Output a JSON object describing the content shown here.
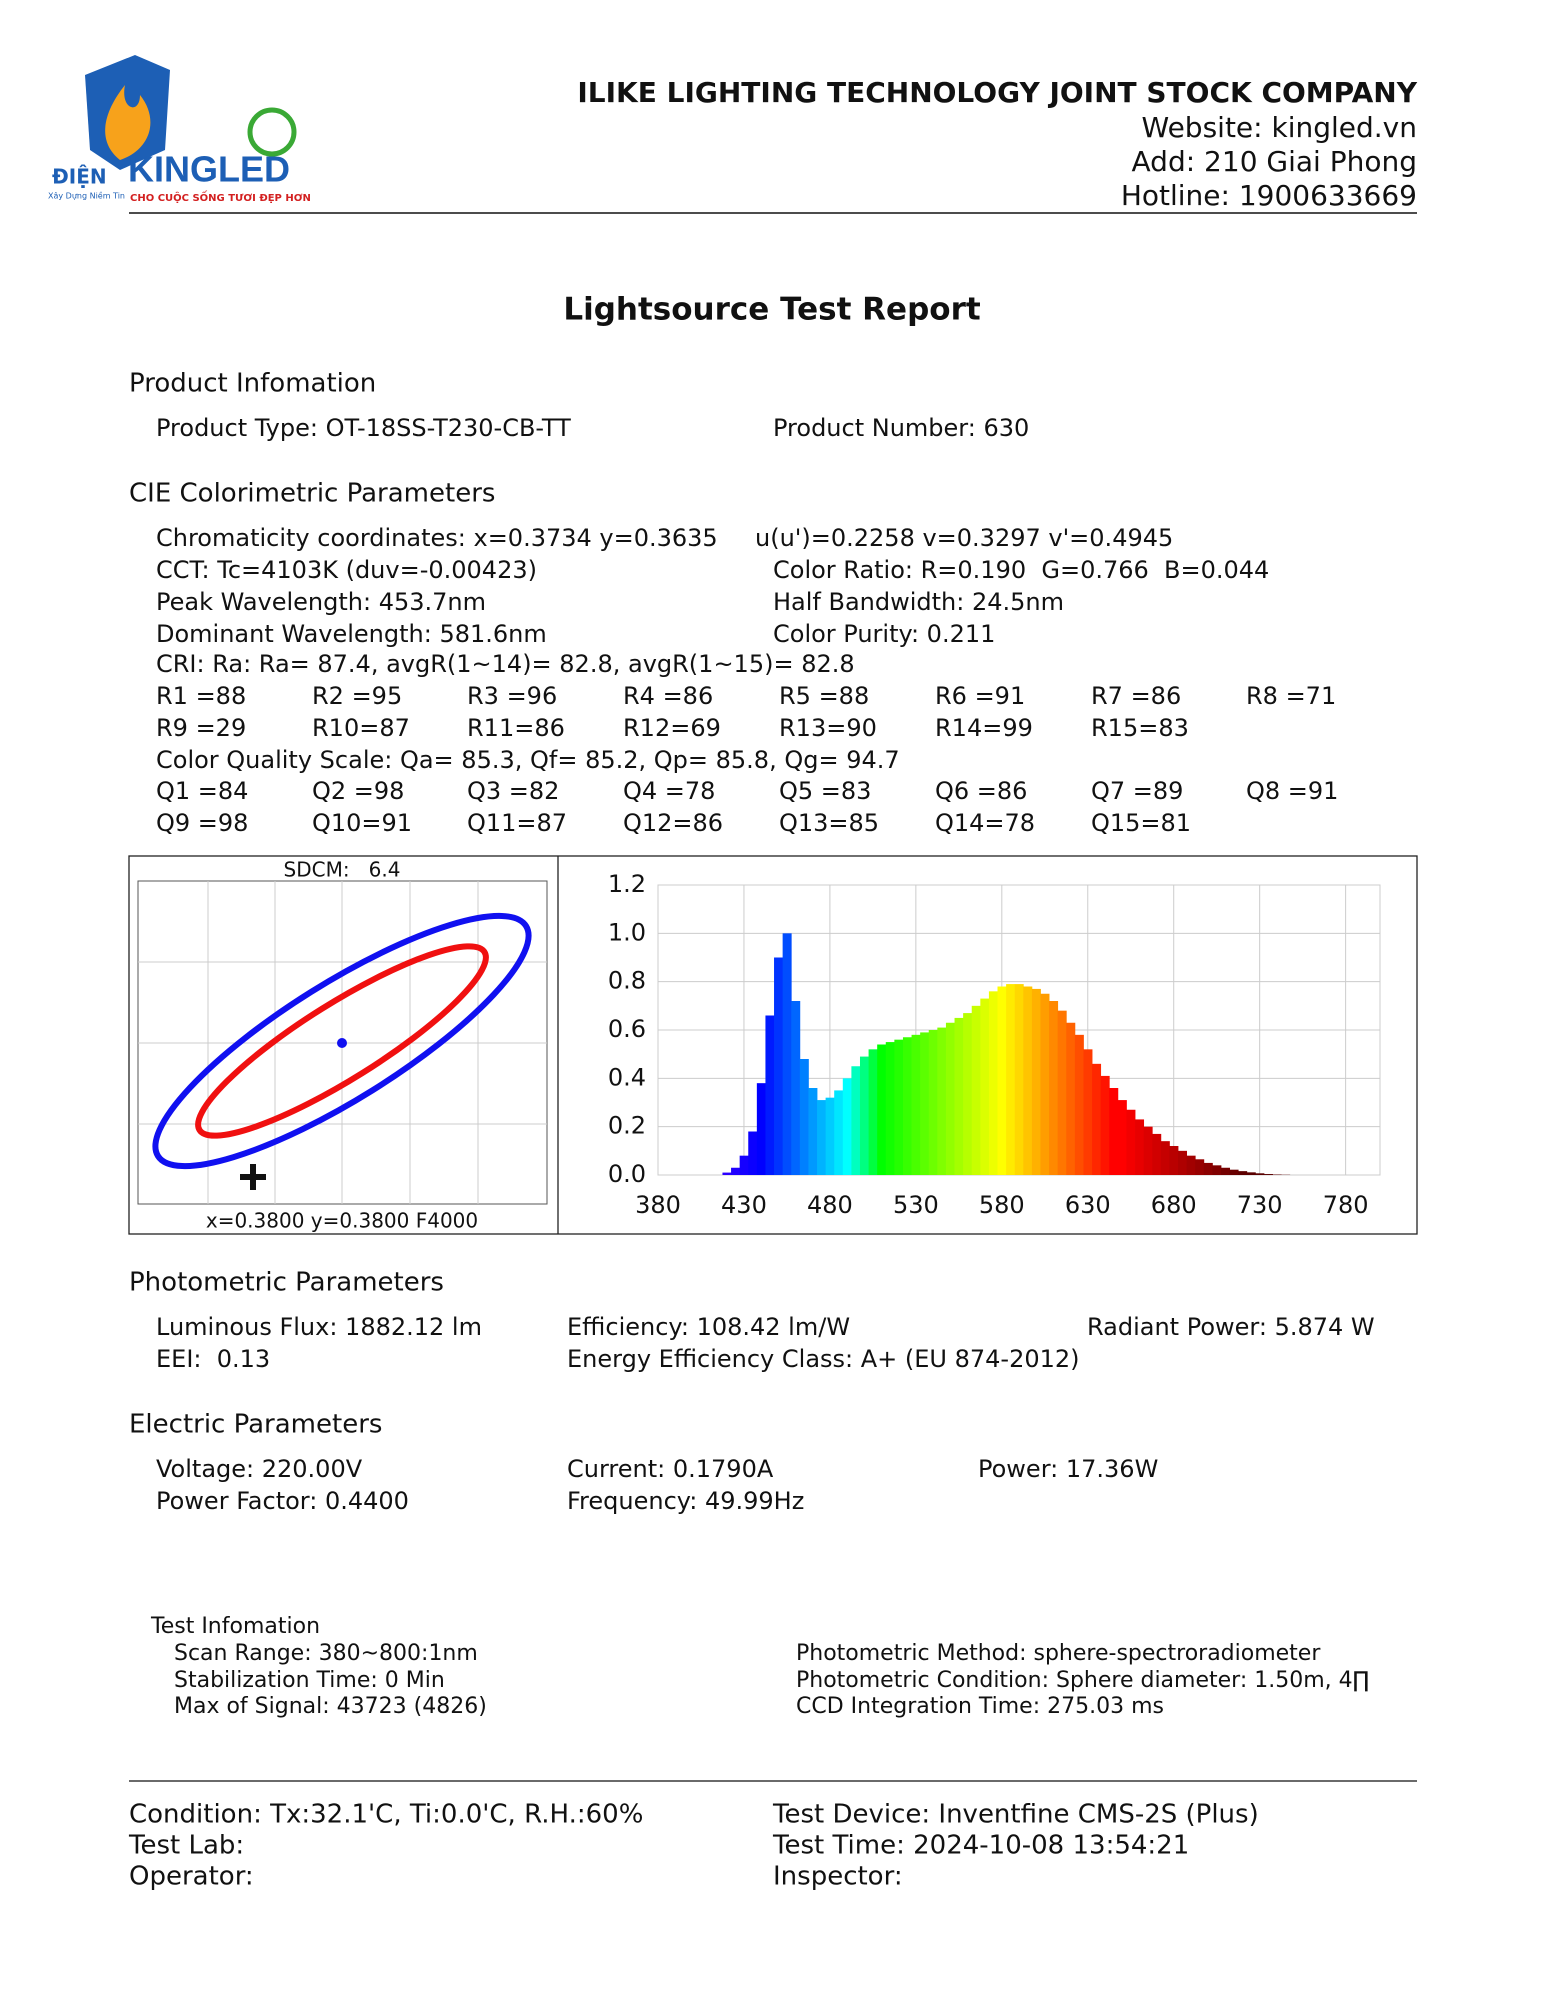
{
  "header": {
    "company": "ILIKE LIGHTING TECHNOLOGY JOINT STOCK COMPANY",
    "website": "Website: kingled.vn",
    "address": "Add: 210 Giai Phong",
    "hotline": "Hotline: 1900633669"
  },
  "logo": {
    "left": "ĐIỆN",
    "brand": "KINGLED",
    "slogan": "CHO CUỘC SỐNG TƯƠI ĐẸP HƠN",
    "tagline": "Xây Dựng Niềm Tin"
  },
  "title": "Lightsource Test Report",
  "product": {
    "heading": "Product Infomation",
    "type": "Product Type: OT-18SS-T230-CB-TT",
    "number": "Product Number: 630"
  },
  "cie": {
    "heading": "CIE Colorimetric Parameters",
    "lines": [
      [
        "Chromaticity coordinates: x=0.3734 y=0.3635",
        "u(u')=0.2258 v=0.3297 v'=0.4945"
      ],
      [
        "CCT: Tc=4103K (duv=-0.00423)",
        "Color Ratio: R=0.190  G=0.766  B=0.044"
      ],
      [
        "Peak Wavelength: 453.7nm",
        "Half Bandwidth: 24.5nm"
      ],
      [
        "Dominant Wavelength: 581.6nm",
        "Color Purity: 0.211"
      ]
    ],
    "cri": "CRI: Ra: Ra= 87.4, avgR(1~14)= 82.8, avgR(1~15)= 82.8",
    "r": [
      "R1 =88",
      "R2 =95",
      "R3 =96",
      "R4 =86",
      "R5 =88",
      "R6 =91",
      "R7 =86",
      "R8 =71",
      "R9 =29",
      "R10=87",
      "R11=86",
      "R12=69",
      "R13=90",
      "R14=99",
      "R15=83"
    ],
    "cqs": "Color Quality Scale: Qa= 85.3, Qf= 85.2, Qp= 85.8, Qg= 94.7",
    "q": [
      "Q1 =84",
      "Q2 =98",
      "Q3 =82",
      "Q4 =78",
      "Q5 =83",
      "Q6 =86",
      "Q7 =89",
      "Q8 =91",
      "Q9 =98",
      "Q10=91",
      "Q11=87",
      "Q12=86",
      "Q13=85",
      "Q14=78",
      "Q15=81"
    ]
  },
  "sdcm": {
    "label": "SDCM:   6.4",
    "target": "x=0.3800 y=0.3800 F4000"
  },
  "chart_data": {
    "type": "bar",
    "grid": true,
    "xlim": [
      380,
      800
    ],
    "xticks": [
      380,
      430,
      480,
      530,
      580,
      630,
      680,
      730,
      780
    ],
    "ylim": [
      0,
      1.2
    ],
    "yticks": [
      {
        "value": 0,
        "label": "0.0"
      },
      0.2,
      0.4,
      0.6,
      0.8,
      {
        "value": 1,
        "label": "1.0"
      },
      1.2
    ],
    "x": [
      380,
      385,
      390,
      395,
      400,
      405,
      410,
      415,
      420,
      425,
      430,
      435,
      440,
      445,
      450,
      455,
      460,
      465,
      470,
      475,
      480,
      485,
      490,
      495,
      500,
      505,
      510,
      515,
      520,
      525,
      530,
      535,
      540,
      545,
      550,
      555,
      560,
      565,
      570,
      575,
      580,
      585,
      590,
      595,
      600,
      605,
      610,
      615,
      620,
      625,
      630,
      635,
      640,
      645,
      650,
      655,
      660,
      665,
      670,
      675,
      680,
      685,
      690,
      695,
      700,
      705,
      710,
      715,
      720,
      725,
      730,
      735,
      740,
      745,
      750,
      755,
      760,
      765,
      770,
      775,
      780
    ],
    "values": [
      0,
      0,
      0,
      0,
      0,
      0,
      0,
      0,
      0.01,
      0.03,
      0.08,
      0.18,
      0.38,
      0.66,
      0.9,
      1.0,
      0.72,
      0.48,
      0.36,
      0.31,
      0.32,
      0.35,
      0.4,
      0.45,
      0.49,
      0.52,
      0.54,
      0.55,
      0.56,
      0.57,
      0.58,
      0.59,
      0.6,
      0.61,
      0.63,
      0.65,
      0.67,
      0.7,
      0.73,
      0.76,
      0.78,
      0.79,
      0.79,
      0.78,
      0.77,
      0.75,
      0.72,
      0.68,
      0.63,
      0.58,
      0.52,
      0.46,
      0.41,
      0.36,
      0.31,
      0.27,
      0.23,
      0.2,
      0.17,
      0.14,
      0.12,
      0.1,
      0.08,
      0.065,
      0.05,
      0.04,
      0.03,
      0.022,
      0.016,
      0.011,
      0.007,
      0.004,
      0.002,
      0.001,
      0,
      0,
      0,
      0,
      0,
      0,
      0
    ]
  },
  "photometric": {
    "heading": "Photometric Parameters",
    "rows": [
      [
        "Luminous Flux: 1882.12 lm",
        "Efficiency: 108.42 lm/W",
        "Radiant Power: 5.874 W"
      ],
      [
        "EEI:  0.13",
        "Energy Efficiency Class: A+ (EU 874-2012)"
      ]
    ]
  },
  "electric": {
    "heading": "Electric Parameters",
    "rows": [
      [
        "Voltage: 220.00V",
        "Current: 0.1790A",
        "Power: 17.36W"
      ],
      [
        "Power Factor: 0.4400",
        "Frequency: 49.99Hz"
      ]
    ]
  },
  "test_info": {
    "heading": "Test Infomation",
    "left": [
      "Scan Range: 380~800:1nm",
      "Stabilization Time: 0 Min",
      "Max of Signal: 43723 (4826)"
    ],
    "right": [
      "Photometric Method: sphere-spectroradiometer",
      "Photometric Condition: Sphere diameter: 1.50m, 4∏",
      "CCD Integration Time: 275.03 ms"
    ]
  },
  "footer": {
    "left": [
      "Condition: Tx:32.1'C, Ti:0.0'C, R.H.:60%",
      "Test Lab:",
      "Operator:"
    ],
    "right": [
      "Test Device: Inventfine CMS-2S (Plus)",
      "Test Time: 2024-10-08 13:54:21",
      "Inspector:"
    ]
  }
}
